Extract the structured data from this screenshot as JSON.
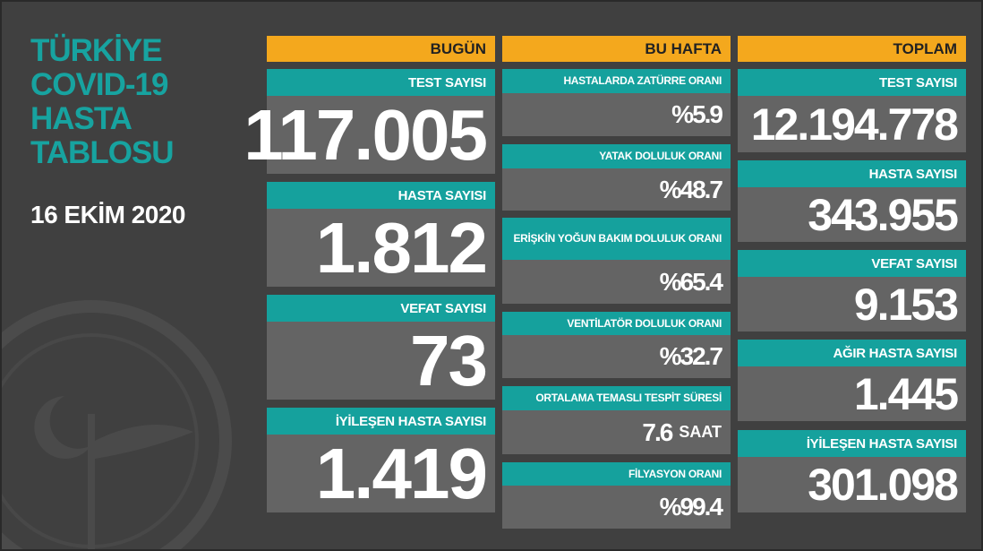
{
  "title": [
    "TÜRKİYE",
    "COVID-19",
    "HASTA",
    "TABLOSU"
  ],
  "date": "16 EKİM 2020",
  "columns": [
    {
      "header": "BUGÜN",
      "cards": [
        {
          "label": "TEST SAYISI",
          "value": "117.005"
        },
        {
          "label": "HASTA SAYISI",
          "value": "1.812"
        },
        {
          "label": "VEFAT SAYISI",
          "value": "73"
        },
        {
          "label": "İYİLEŞEN HASTA SAYISI",
          "value": "1.419"
        }
      ]
    },
    {
      "header": "BU HAFTA",
      "cards": [
        {
          "label": "HASTALARDA ZATÜRRE ORANI",
          "value": "%5.9"
        },
        {
          "label": "YATAK DOLULUK ORANI",
          "value": "%48.7"
        },
        {
          "label": "ERİŞKİN YOĞUN BAKIM DOLULUK ORANI",
          "value": "%65.4"
        },
        {
          "label": "VENTİLATÖR DOLULUK ORANI",
          "value": "%32.7"
        },
        {
          "label": "ORTALAMA TEMASLI TESPİT SÜRESİ",
          "value": "7.6",
          "unit": "SAAT"
        },
        {
          "label": "FİLYASYON ORANI",
          "value": "%99.4"
        }
      ]
    },
    {
      "header": "TOPLAM",
      "cards": [
        {
          "label": "TEST SAYISI",
          "value": "12.194.778"
        },
        {
          "label": "HASTA SAYISI",
          "value": "343.955"
        },
        {
          "label": "VEFAT SAYISI",
          "value": "9.153"
        },
        {
          "label": "AĞIR HASTA SAYISI",
          "value": "1.445"
        },
        {
          "label": "İYİLEŞEN HASTA SAYISI",
          "value": "301.098"
        }
      ]
    }
  ]
}
